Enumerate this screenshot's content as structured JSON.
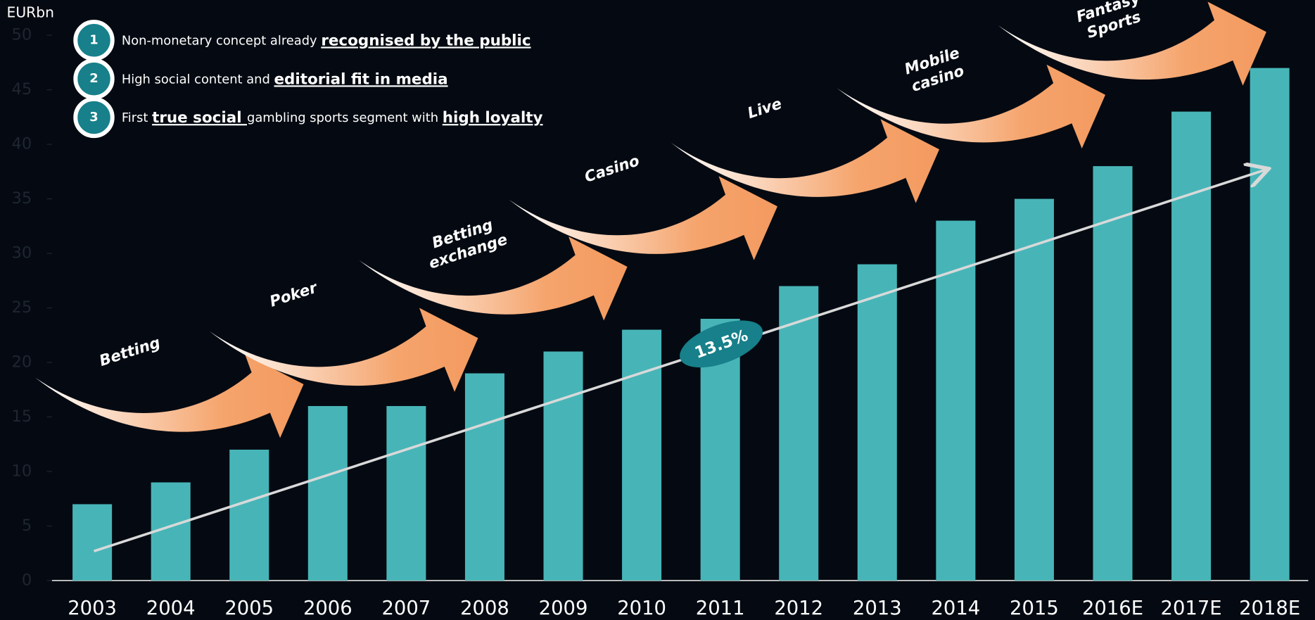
{
  "chart_data": {
    "type": "bar",
    "unit_label": "EURbn",
    "categories": [
      "2003",
      "2004",
      "2005",
      "2006",
      "2007",
      "2008",
      "2009",
      "2010",
      "2011",
      "2012",
      "2013",
      "2014",
      "2015",
      "2016E",
      "2017E",
      "2018E"
    ],
    "values": [
      7,
      9,
      12,
      16,
      16,
      19,
      21,
      23,
      24,
      27,
      29,
      33,
      35,
      38,
      43,
      47
    ],
    "color": "#47b5b8",
    "ylim": [
      0,
      50
    ],
    "yticks": [
      0,
      5,
      10,
      15,
      20,
      25,
      30,
      35,
      40,
      45,
      50
    ],
    "cagr_label": "13.5%",
    "stages": [
      [
        "Betting"
      ],
      [
        "Poker"
      ],
      [
        "Betting",
        "exchange"
      ],
      [
        "Casino"
      ],
      [
        "Live"
      ],
      [
        "Mobile",
        "casino"
      ],
      [
        "Fantasy",
        "Sports"
      ]
    ],
    "highlights": [
      {
        "number": "1",
        "segments": [
          {
            "text": "Non-monetary concept already ",
            "bold": false
          },
          {
            "text": "recognised by the public",
            "bold": true
          }
        ]
      },
      {
        "number": "2",
        "segments": [
          {
            "text": "High social content and ",
            "bold": false
          },
          {
            "text": "editorial fit in media",
            "bold": true
          }
        ]
      },
      {
        "number": "3",
        "segments": [
          {
            "text": "First ",
            "bold": false
          },
          {
            "text": "true social ",
            "bold": true
          },
          {
            "text": "gambling sports segment with ",
            "bold": false
          },
          {
            "text": "high loyalty",
            "bold": true
          }
        ]
      }
    ]
  }
}
